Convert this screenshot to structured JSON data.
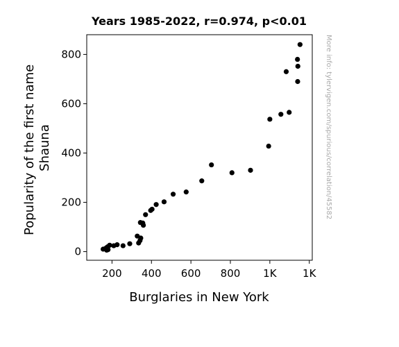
{
  "chart_data": {
    "type": "scatter",
    "title": "Years 1985-2022, r=0.974, p<0.01",
    "xlabel": "Burglaries in New York",
    "ylabel_lines": [
      "Popularity of the first name",
      "Shauna"
    ],
    "watermark": "More info: tylervigen.com/spurious/correlation/45582",
    "xlim": [
      72000,
      1215000
    ],
    "ylim": [
      -35,
      880
    ],
    "x_ticks": [
      {
        "value": 200000,
        "label": "200"
      },
      {
        "value": 400000,
        "label": "400"
      },
      {
        "value": 600000,
        "label": "600"
      },
      {
        "value": 800000,
        "label": "800"
      },
      {
        "value": 1000000,
        "label": "1K"
      },
      {
        "value": 1200000,
        "label": "1K"
      }
    ],
    "y_ticks": [
      {
        "value": 0,
        "label": "0"
      },
      {
        "value": 200,
        "label": "200"
      },
      {
        "value": 400,
        "label": "400"
      },
      {
        "value": 600,
        "label": "600"
      },
      {
        "value": 800,
        "label": "800"
      }
    ],
    "marker_color": "#000000",
    "points": [
      {
        "x": 1153000,
        "y": 840
      },
      {
        "x": 1140000,
        "y": 780
      },
      {
        "x": 1142000,
        "y": 752
      },
      {
        "x": 1083000,
        "y": 730
      },
      {
        "x": 1141000,
        "y": 690
      },
      {
        "x": 1098000,
        "y": 565
      },
      {
        "x": 1056000,
        "y": 557
      },
      {
        "x": 1000000,
        "y": 537
      },
      {
        "x": 994000,
        "y": 428
      },
      {
        "x": 902000,
        "y": 330
      },
      {
        "x": 808000,
        "y": 320
      },
      {
        "x": 704000,
        "y": 352
      },
      {
        "x": 655000,
        "y": 287
      },
      {
        "x": 576000,
        "y": 242
      },
      {
        "x": 510000,
        "y": 233
      },
      {
        "x": 464000,
        "y": 202
      },
      {
        "x": 424000,
        "y": 191
      },
      {
        "x": 403000,
        "y": 172
      },
      {
        "x": 396000,
        "y": 167
      },
      {
        "x": 370000,
        "y": 150
      },
      {
        "x": 344000,
        "y": 118
      },
      {
        "x": 356000,
        "y": 116
      },
      {
        "x": 359000,
        "y": 107
      },
      {
        "x": 328000,
        "y": 63
      },
      {
        "x": 346000,
        "y": 55
      },
      {
        "x": 342000,
        "y": 45
      },
      {
        "x": 335000,
        "y": 35
      },
      {
        "x": 290000,
        "y": 32
      },
      {
        "x": 256000,
        "y": 24
      },
      {
        "x": 226000,
        "y": 28
      },
      {
        "x": 209000,
        "y": 24
      },
      {
        "x": 188000,
        "y": 26
      },
      {
        "x": 179000,
        "y": 20
      },
      {
        "x": 172000,
        "y": 16
      },
      {
        "x": 165000,
        "y": 12
      },
      {
        "x": 155000,
        "y": 10
      },
      {
        "x": 180000,
        "y": 8
      },
      {
        "x": 173000,
        "y": 6
      }
    ]
  }
}
